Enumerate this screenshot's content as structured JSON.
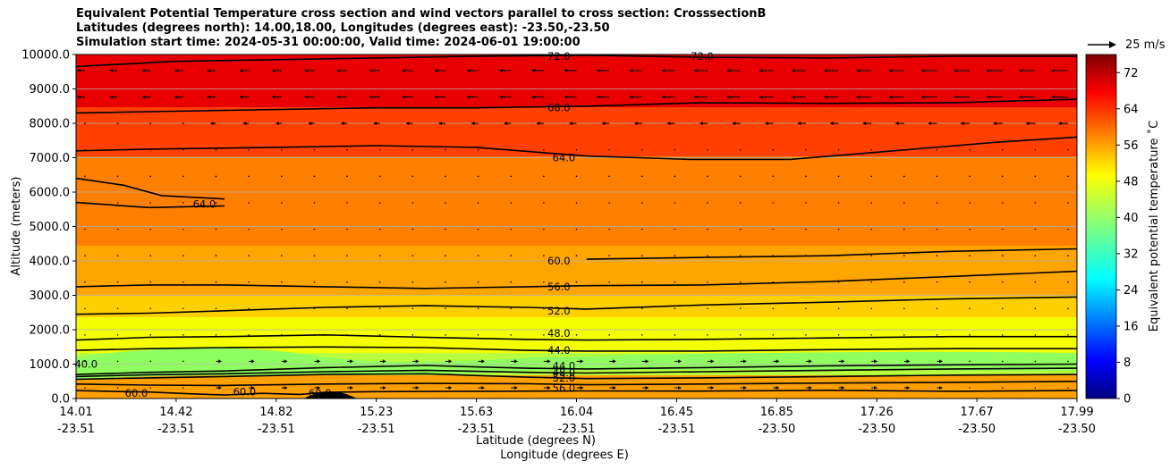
{
  "header": {
    "line1": "Equivalent Potential Temperature cross section and wind vectors parallel to cross section: CrosssectionB",
    "line2": "Latitudes (degrees north): 14.00,18.00, Longitudes (degrees east): -23.50,-23.50",
    "line3": "Simulation start time: 2024-05-31 00:00:00, Valid time: 2024-06-01 19:00:00"
  },
  "reference_vector": {
    "label": "25 m/s"
  },
  "chart_data": {
    "type": "contour",
    "ylabel": "Altitude (meters)",
    "xlabel_lat": "Latitude (degrees N)",
    "xlabel_lon": "Longitude (degrees E)",
    "ylim": [
      0,
      10000
    ],
    "yticks": [
      "0.0",
      "1000.0",
      "2000.0",
      "3000.0",
      "4000.0",
      "5000.0",
      "6000.0",
      "7000.0",
      "8000.0",
      "9000.0",
      "10000.0"
    ],
    "xticks": [
      {
        "lat": "14.01",
        "lon": "-23.51"
      },
      {
        "lat": "14.42",
        "lon": "-23.51"
      },
      {
        "lat": "14.82",
        "lon": "-23.51"
      },
      {
        "lat": "15.23",
        "lon": "-23.51"
      },
      {
        "lat": "15.63",
        "lon": "-23.51"
      },
      {
        "lat": "16.04",
        "lon": "-23.51"
      },
      {
        "lat": "16.45",
        "lon": "-23.51"
      },
      {
        "lat": "16.85",
        "lon": "-23.50"
      },
      {
        "lat": "17.26",
        "lon": "-23.50"
      },
      {
        "lat": "17.67",
        "lon": "-23.50"
      },
      {
        "lat": "17.99",
        "lon": "-23.50"
      }
    ],
    "x_range": [
      14.01,
      17.99
    ],
    "colorbar": {
      "label": "Equivalent potential temperature ˚C",
      "min": 0,
      "max": 76,
      "ticks": [
        "0",
        "8",
        "16",
        "24",
        "32",
        "40",
        "48",
        "56",
        "64",
        "72"
      ]
    },
    "contours": [
      {
        "level": "60.0",
        "points": [
          [
            14.01,
            230
          ],
          [
            14.2,
            200
          ],
          [
            14.3,
            190
          ],
          [
            14.45,
            140
          ],
          [
            14.6,
            100
          ],
          [
            14.75,
            150
          ],
          [
            14.9,
            120
          ],
          [
            15.0,
            180
          ],
          [
            15.2,
            200
          ],
          [
            15.6,
            210
          ],
          [
            16.0,
            220
          ],
          [
            16.5,
            215
          ],
          [
            17.0,
            240
          ],
          [
            17.5,
            210
          ],
          [
            17.99,
            230
          ]
        ]
      },
      {
        "level": "56.0",
        "points": [
          [
            14.01,
            420
          ],
          [
            14.3,
            390
          ],
          [
            14.6,
            380
          ],
          [
            15.0,
            420
          ],
          [
            15.4,
            440
          ],
          [
            15.8,
            430
          ],
          [
            16.04,
            400
          ],
          [
            16.5,
            420
          ],
          [
            17.0,
            450
          ],
          [
            17.5,
            470
          ],
          [
            17.99,
            500
          ]
        ]
      },
      {
        "level": "52.0",
        "points": [
          [
            14.01,
            560
          ],
          [
            14.3,
            600
          ],
          [
            14.6,
            640
          ],
          [
            15.0,
            700
          ],
          [
            15.4,
            720
          ],
          [
            15.8,
            620
          ],
          [
            16.04,
            580
          ],
          [
            16.5,
            600
          ],
          [
            17.0,
            640
          ],
          [
            17.5,
            680
          ],
          [
            17.99,
            700
          ]
        ]
      },
      {
        "level": "48.0",
        "points": [
          [
            14.01,
            640
          ],
          [
            14.3,
            690
          ],
          [
            14.6,
            720
          ],
          [
            15.0,
            780
          ],
          [
            15.4,
            820
          ],
          [
            15.8,
            760
          ],
          [
            16.04,
            740
          ],
          [
            16.5,
            780
          ],
          [
            17.0,
            820
          ],
          [
            17.5,
            860
          ],
          [
            17.99,
            880
          ]
        ]
      },
      {
        "level": "44.0",
        "points": [
          [
            14.01,
            700
          ],
          [
            14.3,
            760
          ],
          [
            14.6,
            800
          ],
          [
            15.0,
            900
          ],
          [
            15.4,
            960
          ],
          [
            15.8,
            880
          ],
          [
            16.04,
            860
          ],
          [
            16.5,
            900
          ],
          [
            17.0,
            950
          ],
          [
            17.5,
            980
          ],
          [
            17.99,
            1000
          ]
        ]
      },
      {
        "level": "44.0",
        "points": [
          [
            14.01,
            1400
          ],
          [
            14.3,
            1450
          ],
          [
            14.6,
            1480
          ],
          [
            15.0,
            1500
          ],
          [
            15.4,
            1480
          ],
          [
            15.8,
            1400
          ],
          [
            16.04,
            1380
          ],
          [
            16.5,
            1380
          ],
          [
            17.0,
            1420
          ],
          [
            17.5,
            1450
          ],
          [
            17.99,
            1450
          ]
        ]
      },
      {
        "level": "48.0",
        "points": [
          [
            14.01,
            1700
          ],
          [
            14.3,
            1780
          ],
          [
            14.6,
            1800
          ],
          [
            15.0,
            1850
          ],
          [
            15.4,
            1780
          ],
          [
            15.8,
            1720
          ],
          [
            16.04,
            1700
          ],
          [
            16.5,
            1720
          ],
          [
            17.0,
            1760
          ],
          [
            17.5,
            1800
          ],
          [
            17.99,
            1800
          ]
        ]
      },
      {
        "level": "52.0",
        "points": [
          [
            14.01,
            2450
          ],
          [
            14.3,
            2480
          ],
          [
            14.6,
            2550
          ],
          [
            15.0,
            2650
          ],
          [
            15.4,
            2700
          ],
          [
            15.8,
            2650
          ],
          [
            16.04,
            2600
          ],
          [
            16.5,
            2720
          ],
          [
            17.0,
            2800
          ],
          [
            17.5,
            2900
          ],
          [
            17.99,
            2950
          ]
        ]
      },
      {
        "level": "56.0",
        "points": [
          [
            14.01,
            3250
          ],
          [
            14.3,
            3300
          ],
          [
            14.6,
            3300
          ],
          [
            15.0,
            3250
          ],
          [
            15.4,
            3200
          ],
          [
            15.8,
            3250
          ],
          [
            16.04,
            3280
          ],
          [
            16.5,
            3300
          ],
          [
            17.0,
            3400
          ],
          [
            17.5,
            3550
          ],
          [
            17.99,
            3700
          ]
        ]
      },
      {
        "level": "60.0",
        "points": [
          [
            16.04,
            4050
          ],
          [
            16.5,
            4100
          ],
          [
            17.0,
            4150
          ],
          [
            17.5,
            4280
          ],
          [
            17.99,
            4350
          ]
        ]
      },
      {
        "level": "64.0",
        "points": [
          [
            14.01,
            6400
          ],
          [
            14.2,
            6200
          ],
          [
            14.35,
            5900
          ],
          [
            14.6,
            5800
          ]
        ]
      },
      {
        "level": "64.0",
        "points": [
          [
            14.01,
            5700
          ],
          [
            14.3,
            5550
          ],
          [
            14.6,
            5600
          ]
        ]
      },
      {
        "level": "64.0",
        "points": [
          [
            14.01,
            7200
          ],
          [
            14.3,
            7250
          ],
          [
            14.8,
            7300
          ],
          [
            15.2,
            7350
          ],
          [
            15.6,
            7300
          ],
          [
            16.04,
            7050
          ],
          [
            16.45,
            6950
          ],
          [
            16.85,
            6950
          ],
          [
            17.26,
            7200
          ],
          [
            17.67,
            7450
          ],
          [
            17.99,
            7600
          ]
        ]
      },
      {
        "level": "68.0",
        "points": [
          [
            14.01,
            8300
          ],
          [
            14.4,
            8350
          ],
          [
            14.8,
            8400
          ],
          [
            15.2,
            8450
          ],
          [
            15.6,
            8450
          ],
          [
            16.04,
            8500
          ],
          [
            16.5,
            8600
          ],
          [
            17.0,
            8580
          ],
          [
            17.5,
            8600
          ],
          [
            17.99,
            8700
          ]
        ]
      },
      {
        "level": "72.0",
        "points": [
          [
            14.01,
            9650
          ],
          [
            14.4,
            9800
          ],
          [
            14.8,
            9850
          ],
          [
            15.2,
            9900
          ],
          [
            15.6,
            9950
          ],
          [
            16.04,
            9980
          ],
          [
            16.5,
            9920
          ],
          [
            17.0,
            9900
          ],
          [
            17.5,
            9950
          ],
          [
            17.99,
            9950
          ]
        ]
      }
    ],
    "contour_labels": [
      {
        "text": "72.0",
        "x": 15.93,
        "y": 9950
      },
      {
        "text": "72.0",
        "x": 16.5,
        "y": 9950
      },
      {
        "text": "68.0",
        "x": 15.93,
        "y": 8450
      },
      {
        "text": "64.0",
        "x": 15.95,
        "y": 7000
      },
      {
        "text": "64.0",
        "x": 14.52,
        "y": 5650
      },
      {
        "text": "60.0",
        "x": 15.93,
        "y": 4000
      },
      {
        "text": "56.0",
        "x": 15.93,
        "y": 3250
      },
      {
        "text": "52.0",
        "x": 15.93,
        "y": 2550
      },
      {
        "text": "48.0",
        "x": 15.93,
        "y": 1900
      },
      {
        "text": "44.0",
        "x": 15.93,
        "y": 1400
      },
      {
        "text": "44.0",
        "x": 15.95,
        "y": 950
      },
      {
        "text": "48.0",
        "x": 15.95,
        "y": 750
      },
      {
        "text": "52.0",
        "x": 15.95,
        "y": 600
      },
      {
        "text": "56.0",
        "x": 15.95,
        "y": 300
      },
      {
        "text": "40.0",
        "x": 14.05,
        "y": 1000
      },
      {
        "text": "60.0",
        "x": 14.25,
        "y": 150
      },
      {
        "text": "60.0",
        "x": 14.68,
        "y": 200
      },
      {
        "text": "60.0",
        "x": 14.98,
        "y": 150
      }
    ]
  }
}
